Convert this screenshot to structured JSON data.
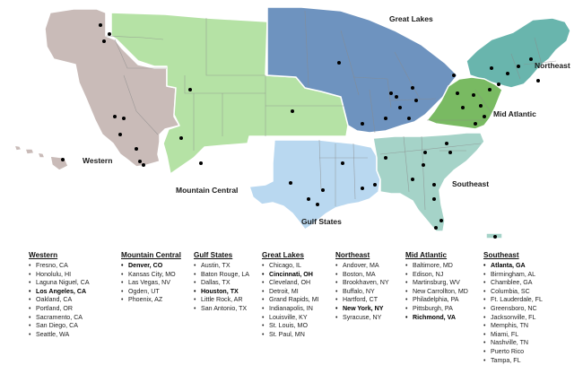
{
  "map": {
    "region_colors": {
      "Western": "#c9bbb8",
      "Mountain Central": "#b5e2a5",
      "Great Lakes": "#6e93bf",
      "Northeast": "#69b5ad",
      "Mid Atlantic": "#79ba62",
      "Gulf States": "#b9d8f0",
      "Southeast": "#a5d3c8"
    },
    "border_color": "#ffffff",
    "state_line_color": "#8a8a8a",
    "marker_color": "#000000"
  },
  "regions": [
    {
      "name": "Western",
      "cities": [
        {
          "text": "Fresno, CA",
          "hq": false
        },
        {
          "text": "Honolulu, HI",
          "hq": false
        },
        {
          "text": "Laguna Niguel, CA",
          "hq": false
        },
        {
          "text": "Los Angeles, CA",
          "hq": true
        },
        {
          "text": "Oakland, CA",
          "hq": false
        },
        {
          "text": "Portland, OR",
          "hq": false
        },
        {
          "text": "Sacramento, CA",
          "hq": false
        },
        {
          "text": "San Diego, CA",
          "hq": false
        },
        {
          "text": "Seattle, WA",
          "hq": false
        }
      ]
    },
    {
      "name": "Mountain Central",
      "cities": [
        {
          "text": "Denver, CO",
          "hq": true
        },
        {
          "text": "Kansas City, MO",
          "hq": false
        },
        {
          "text": "Las Vegas, NV",
          "hq": false
        },
        {
          "text": "Ogden, UT",
          "hq": false
        },
        {
          "text": "Phoenix, AZ",
          "hq": false
        }
      ]
    },
    {
      "name": "Gulf States",
      "cities": [
        {
          "text": "Austin, TX",
          "hq": false
        },
        {
          "text": "Baton Rouge, LA",
          "hq": false
        },
        {
          "text": "Dallas, TX",
          "hq": false
        },
        {
          "text": "Houston, TX",
          "hq": true
        },
        {
          "text": "Little Rock, AR",
          "hq": false
        },
        {
          "text": "San Antonio, TX",
          "hq": false
        }
      ]
    },
    {
      "name": "Great Lakes",
      "cities": [
        {
          "text": "Chicago, IL",
          "hq": false
        },
        {
          "text": "Cincinnati, OH",
          "hq": true
        },
        {
          "text": "Cleveland, OH",
          "hq": false
        },
        {
          "text": "Detroit, MI",
          "hq": false
        },
        {
          "text": "Grand Rapids, MI",
          "hq": false
        },
        {
          "text": "Indianapolis, IN",
          "hq": false
        },
        {
          "text": "Louisville, KY",
          "hq": false
        },
        {
          "text": "St. Louis, MO",
          "hq": false
        },
        {
          "text": "St. Paul, MN",
          "hq": false
        }
      ]
    },
    {
      "name": "Northeast",
      "cities": [
        {
          "text": "Andover, MA",
          "hq": false
        },
        {
          "text": "Boston, MA",
          "hq": false
        },
        {
          "text": "Brookhaven, NY",
          "hq": false
        },
        {
          "text": "Buffalo, NY",
          "hq": false
        },
        {
          "text": "Hartford, CT",
          "hq": false
        },
        {
          "text": "New York, NY",
          "hq": true
        },
        {
          "text": "Syracuse, NY",
          "hq": false
        }
      ]
    },
    {
      "name": "Mid Atlantic",
      "cities": [
        {
          "text": "Baltimore, MD",
          "hq": false
        },
        {
          "text": "Edison, NJ",
          "hq": false
        },
        {
          "text": "Martinsburg, WV",
          "hq": false
        },
        {
          "text": "New Carrollton, MD",
          "hq": false
        },
        {
          "text": "Philadelphia, PA",
          "hq": false
        },
        {
          "text": "Pittsburgh, PA",
          "hq": false
        },
        {
          "text": "Richmond, VA",
          "hq": true
        }
      ]
    },
    {
      "name": "Southeast",
      "cities": [
        {
          "text": "Atlanta, GA",
          "hq": true
        },
        {
          "text": "Birmingham, AL",
          "hq": false
        },
        {
          "text": "Chamblee, GA",
          "hq": false
        },
        {
          "text": "Columbia, SC",
          "hq": false
        },
        {
          "text": "Ft. Lauderdale, FL",
          "hq": false
        },
        {
          "text": "Greensboro, NC",
          "hq": false
        },
        {
          "text": "Jacksonville, FL",
          "hq": false
        },
        {
          "text": "Memphis, TN",
          "hq": false
        },
        {
          "text": "Miami, FL",
          "hq": false
        },
        {
          "text": "Nashville, TN",
          "hq": false
        },
        {
          "text": "Puerto Rico",
          "hq": false
        },
        {
          "text": "Tampa, FL",
          "hq": false
        }
      ]
    }
  ]
}
